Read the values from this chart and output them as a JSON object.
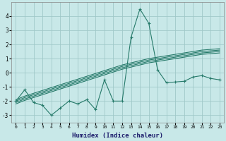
{
  "xlabel": "Humidex (Indice chaleur)",
  "background_color": "#c8e8e8",
  "grid_color": "#a0c8c8",
  "line_color": "#267a6a",
  "x_values": [
    0,
    1,
    2,
    3,
    4,
    5,
    6,
    7,
    8,
    9,
    10,
    11,
    12,
    13,
    14,
    15,
    16,
    17,
    18,
    19,
    20,
    21,
    22,
    23
  ],
  "main_series": [
    -2.0,
    -1.2,
    -2.1,
    -2.3,
    -3.0,
    -2.5,
    -2.0,
    -2.2,
    -1.9,
    -2.6,
    -0.5,
    -2.0,
    -2.0,
    2.5,
    4.5,
    3.5,
    0.2,
    -0.7,
    -0.65,
    -0.6,
    -0.3,
    -0.2,
    -0.4,
    -0.5
  ],
  "linear_series": [
    [
      -2.0,
      -1.75,
      -1.55,
      -1.35,
      -1.15,
      -0.95,
      -0.75,
      -0.55,
      -0.35,
      -0.15,
      0.05,
      0.25,
      0.45,
      0.6,
      0.75,
      0.9,
      1.0,
      1.1,
      1.2,
      1.3,
      1.4,
      1.5,
      1.55,
      1.6
    ],
    [
      -2.1,
      -1.85,
      -1.65,
      -1.45,
      -1.25,
      -1.05,
      -0.85,
      -0.65,
      -0.45,
      -0.25,
      -0.05,
      0.15,
      0.35,
      0.5,
      0.65,
      0.8,
      0.9,
      1.0,
      1.1,
      1.2,
      1.3,
      1.4,
      1.45,
      1.5
    ],
    [
      -2.2,
      -1.95,
      -1.75,
      -1.55,
      -1.35,
      -1.15,
      -0.95,
      -0.75,
      -0.55,
      -0.35,
      -0.15,
      0.05,
      0.25,
      0.4,
      0.55,
      0.7,
      0.8,
      0.9,
      1.0,
      1.1,
      1.2,
      1.3,
      1.35,
      1.4
    ],
    [
      -1.9,
      -1.65,
      -1.45,
      -1.25,
      -1.05,
      -0.85,
      -0.65,
      -0.45,
      -0.25,
      -0.05,
      0.15,
      0.35,
      0.55,
      0.7,
      0.85,
      1.0,
      1.1,
      1.2,
      1.3,
      1.4,
      1.5,
      1.6,
      1.65,
      1.7
    ]
  ],
  "ylim": [
    -3.5,
    5.0
  ],
  "yticks": [
    -3,
    -2,
    -1,
    0,
    1,
    2,
    3,
    4
  ],
  "xticks": [
    0,
    1,
    2,
    3,
    4,
    5,
    6,
    7,
    8,
    9,
    10,
    11,
    12,
    13,
    14,
    15,
    16,
    17,
    18,
    19,
    20,
    21,
    22,
    23
  ],
  "marker": "+",
  "markersize": 3,
  "linewidth": 0.8
}
